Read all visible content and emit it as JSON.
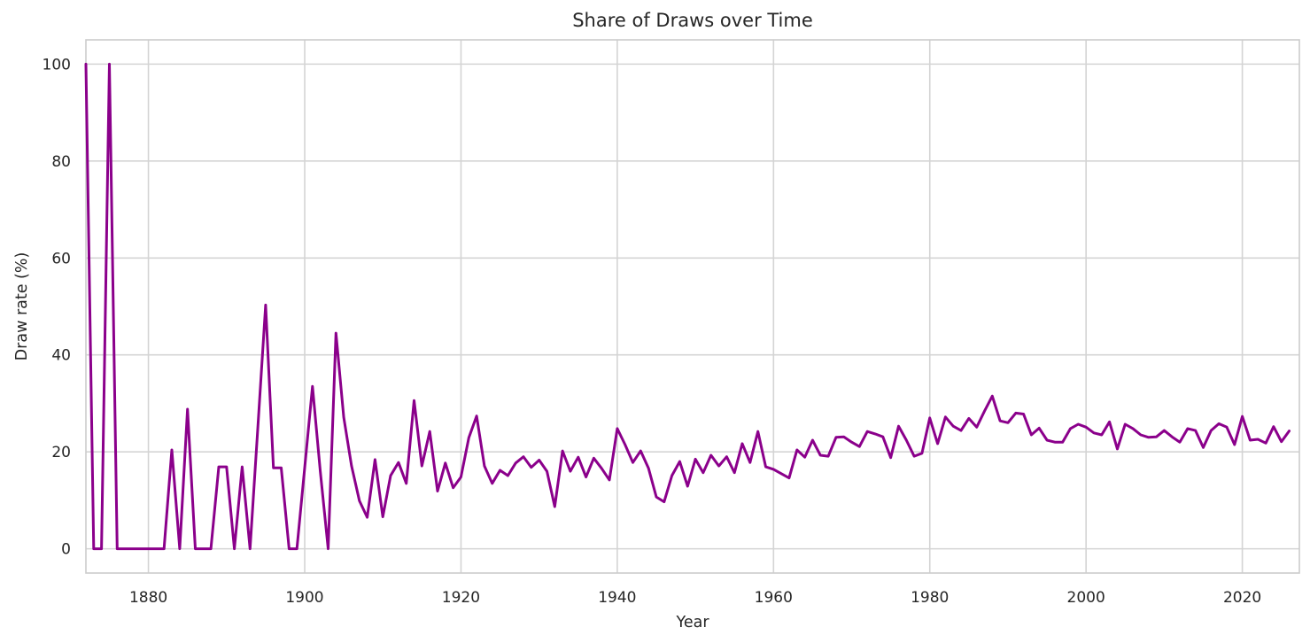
{
  "chart_data": {
    "type": "line",
    "title": "Share of Draws over Time",
    "xlabel": "Year",
    "ylabel": "Draw rate (%)",
    "x_start_year": 1872,
    "x_step": 1,
    "values": [
      100,
      0,
      0,
      100,
      0,
      0,
      0,
      0,
      0,
      0,
      0,
      20.4,
      0,
      28.8,
      0,
      0,
      0,
      16.9,
      16.9,
      0,
      16.9,
      0,
      25.0,
      50.3,
      16.7,
      16.7,
      0,
      0,
      16.7,
      33.5,
      16.0,
      0,
      44.5,
      27.1,
      17.1,
      9.9,
      6.5,
      18.4,
      6.6,
      15.1,
      17.8,
      13.5,
      30.6,
      17.1,
      24.2,
      11.9,
      17.7,
      12.6,
      14.8,
      22.9,
      27.4,
      17.1,
      13.5,
      16.2,
      15.1,
      17.7,
      19.0,
      16.8,
      18.3,
      16.0,
      8.7,
      20.2,
      16.0,
      18.9,
      14.8,
      18.7,
      16.6,
      14.2,
      24.8,
      21.5,
      17.8,
      20.2,
      16.6,
      10.7,
      9.7,
      15.1,
      18.0,
      12.9,
      18.5,
      15.7,
      19.3,
      17.1,
      19.0,
      15.7,
      21.7,
      17.8,
      24.2,
      16.9,
      16.4,
      15.5,
      14.6,
      20.4,
      18.9,
      22.4,
      19.3,
      19.1,
      23.0,
      23.1,
      22.0,
      21.1,
      24.2,
      23.7,
      23.1,
      18.8,
      25.3,
      22.4,
      19.1,
      19.7,
      27.0,
      21.7,
      27.2,
      25.3,
      24.4,
      26.9,
      25.1,
      28.4,
      31.5,
      26.4,
      26.0,
      28.0,
      27.8,
      23.5,
      24.9,
      22.4,
      22.0,
      22.0,
      24.8,
      25.7,
      25.1,
      23.9,
      23.5,
      26.2,
      20.6,
      25.7,
      24.8,
      23.5,
      23.0,
      23.1,
      24.4,
      23.1,
      22.0,
      24.8,
      24.4,
      20.9,
      24.4,
      25.8,
      25.1,
      21.5,
      27.3,
      22.4,
      22.6,
      21.8,
      25.2,
      22.1,
      24.3
    ],
    "xticks": [
      1880,
      1900,
      1920,
      1940,
      1960,
      1980,
      2000,
      2020
    ],
    "yticks": [
      0,
      20,
      40,
      60,
      80,
      100
    ],
    "xlim": [
      1872,
      2027.3
    ],
    "ylim": [
      -5,
      105
    ],
    "grid": true,
    "legend": "none",
    "line_color": "#8B008B",
    "grid_color": "#D4D4D4",
    "spine_color": "#CCCCCC",
    "background_color": "#FFFFFF",
    "text_color": "#262626"
  }
}
